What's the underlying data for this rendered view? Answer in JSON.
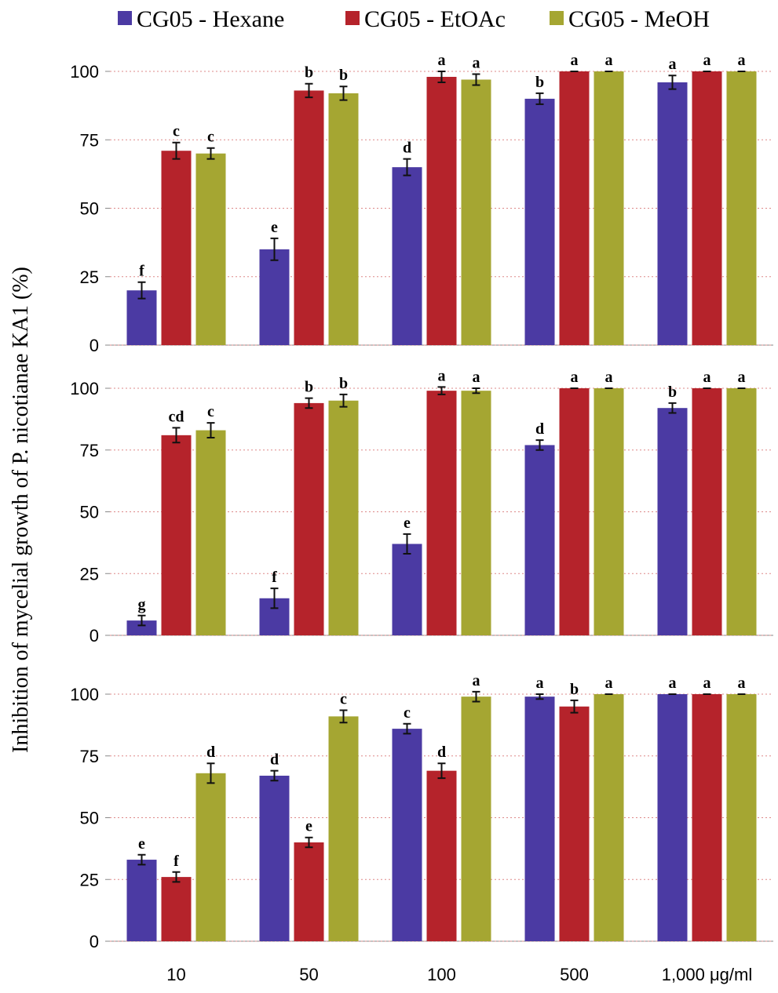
{
  "chart_data": [
    {
      "type": "bar",
      "ylabel": "Inhibition of mycelial growth of P. nicotianae KA1 (%)",
      "ylim": [
        0,
        100
      ],
      "yticks": [
        0,
        25,
        50,
        75,
        100
      ],
      "grid": true,
      "series": [
        {
          "name": "CG05 - Hexane",
          "color": "#4b3aa3",
          "values": [
            20,
            35,
            65,
            90,
            96
          ],
          "errors": [
            3,
            4,
            3,
            2,
            2.5
          ],
          "letters": [
            "f",
            "e",
            "d",
            "b",
            "a"
          ]
        },
        {
          "name": "CG05 - EtOAc",
          "color": "#b5232b",
          "values": [
            71,
            93,
            98,
            100,
            100
          ],
          "errors": [
            3,
            2.5,
            2,
            0,
            0
          ],
          "letters": [
            "c",
            "b",
            "a",
            "a",
            "a"
          ]
        },
        {
          "name": "CG05 - MeOH",
          "color": "#a5a632",
          "values": [
            70,
            92,
            97,
            100,
            100
          ],
          "errors": [
            2,
            2.5,
            2,
            0,
            0
          ],
          "letters": [
            "c",
            "b",
            "a",
            "a",
            "a"
          ]
        }
      ]
    },
    {
      "type": "bar",
      "ylim": [
        0,
        100
      ],
      "yticks": [
        0,
        25,
        50,
        75,
        100
      ],
      "grid": true,
      "series": [
        {
          "values": [
            6,
            15,
            37,
            77,
            92
          ],
          "errors": [
            2,
            4,
            4,
            2,
            2
          ],
          "letters": [
            "g",
            "f",
            "e",
            "d",
            "b"
          ]
        },
        {
          "values": [
            81,
            94,
            99,
            100,
            100
          ],
          "errors": [
            3,
            2,
            1.5,
            0,
            0
          ],
          "letters": [
            "cd",
            "b",
            "a",
            "a",
            "a"
          ]
        },
        {
          "values": [
            83,
            95,
            99,
            100,
            100
          ],
          "errors": [
            3,
            2.5,
            1,
            0,
            0
          ],
          "letters": [
            "c",
            "b",
            "a",
            "a",
            "a"
          ]
        }
      ]
    },
    {
      "type": "bar",
      "ylim": [
        0,
        100
      ],
      "yticks": [
        0,
        25,
        50,
        75,
        100
      ],
      "grid": true,
      "categories": [
        "10",
        "50",
        "100",
        "500",
        "1,000 μg/ml"
      ],
      "series": [
        {
          "values": [
            33,
            67,
            86,
            99,
            100
          ],
          "errors": [
            2,
            2,
            2,
            1,
            0
          ],
          "letters": [
            "e",
            "d",
            "c",
            "a",
            "a"
          ]
        },
        {
          "values": [
            26,
            40,
            69,
            95,
            100
          ],
          "errors": [
            2,
            2,
            3,
            2.5,
            0
          ],
          "letters": [
            "f",
            "e",
            "d",
            "b",
            "a"
          ]
        },
        {
          "values": [
            68,
            91,
            99,
            100,
            100
          ],
          "errors": [
            4,
            2.5,
            2,
            0,
            0
          ],
          "letters": [
            "d",
            "c",
            "a",
            "a",
            "a"
          ]
        }
      ]
    }
  ]
}
